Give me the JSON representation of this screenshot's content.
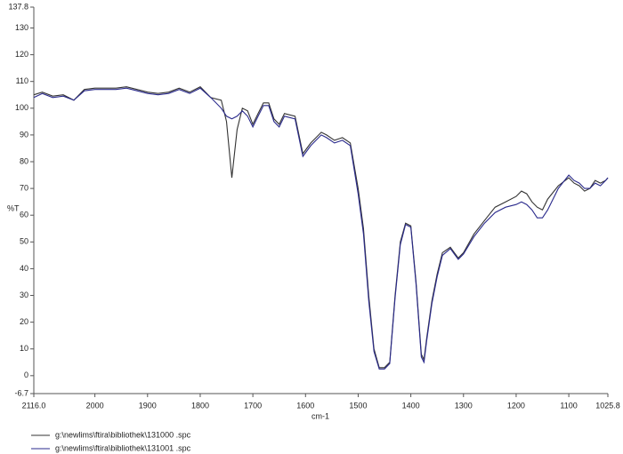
{
  "chart_data": {
    "type": "line",
    "x_label": "cm-1",
    "y_label": "%T",
    "xlim": [
      2116,
      1025.8
    ],
    "ylim": [
      -6.7,
      137.8
    ],
    "xticks": [
      {
        "value": 2116,
        "label": "2116.0"
      },
      2000,
      1900,
      1800,
      1700,
      1600,
      1500,
      1400,
      1300,
      1200,
      1100,
      1025.8
    ],
    "yticks": [
      -6.7,
      0,
      10,
      20,
      30,
      40,
      50,
      60,
      70,
      80,
      90,
      100,
      110,
      120,
      130,
      137.8
    ],
    "x": [
      2116,
      2100,
      2080,
      2060,
      2040,
      2020,
      2000,
      1980,
      1960,
      1940,
      1920,
      1900,
      1880,
      1860,
      1840,
      1820,
      1800,
      1780,
      1760,
      1750,
      1740,
      1730,
      1720,
      1710,
      1700,
      1690,
      1680,
      1670,
      1660,
      1650,
      1640,
      1620,
      1605,
      1590,
      1570,
      1560,
      1545,
      1530,
      1515,
      1500,
      1490,
      1480,
      1470,
      1460,
      1450,
      1440,
      1430,
      1420,
      1410,
      1400,
      1390,
      1380,
      1375,
      1370,
      1360,
      1350,
      1340,
      1325,
      1310,
      1300,
      1280,
      1260,
      1240,
      1220,
      1200,
      1190,
      1180,
      1170,
      1160,
      1150,
      1140,
      1120,
      1100,
      1090,
      1080,
      1070,
      1060,
      1050,
      1040,
      1030,
      1025.8
    ],
    "series": [
      {
        "name": "g:\\newlims\\ftira\\bibliothek\\131000 .spc",
        "color": "#333333",
        "values": [
          105,
          106,
          104.5,
          105,
          103,
          107,
          107.5,
          107.5,
          107.5,
          108,
          107,
          106,
          105.5,
          106,
          107.5,
          106,
          108,
          104,
          103,
          95,
          74,
          92,
          100,
          99,
          94,
          98,
          102,
          102,
          96,
          94,
          98,
          97,
          83,
          87,
          91,
          90,
          88,
          89,
          87,
          70,
          55,
          30,
          10,
          3,
          3,
          5,
          30,
          50,
          57,
          56,
          35,
          8,
          6,
          14,
          28,
          38,
          46,
          48,
          44,
          46,
          53,
          58,
          63,
          65,
          67,
          69,
          68,
          65,
          63,
          62,
          66,
          71,
          74,
          72,
          71,
          69,
          70,
          73,
          72,
          73,
          74
        ]
      },
      {
        "name": "g:\\newlims\\ftira\\bibliothek\\131001 .spc",
        "color": "#2a2a8c",
        "values": [
          104,
          105.5,
          104,
          104.5,
          103,
          106.5,
          107,
          107,
          107,
          107.5,
          106.5,
          105.5,
          105,
          105.5,
          107,
          105.5,
          107.5,
          104,
          100,
          97,
          96,
          97,
          99,
          97,
          93,
          97,
          101,
          101,
          95,
          93,
          97,
          96,
          82,
          86,
          90,
          89,
          87,
          88,
          86,
          68,
          53,
          28,
          9,
          2.5,
          2.5,
          4.5,
          29,
          49,
          56.5,
          55.5,
          34,
          7,
          5,
          13,
          27,
          37,
          45,
          47.5,
          43.5,
          45.5,
          52,
          57,
          61,
          63,
          64,
          65,
          64,
          62,
          59,
          59,
          62,
          70,
          75,
          73,
          72,
          70,
          70,
          72,
          71,
          73,
          74
        ]
      }
    ]
  }
}
